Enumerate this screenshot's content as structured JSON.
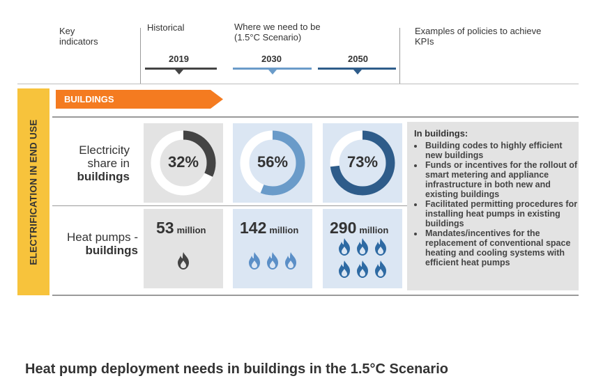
{
  "header": {
    "key_indicators": [
      "Key",
      "indicators"
    ],
    "historical": "Historical",
    "where_we_need": [
      "Where we need to be",
      "(1.5°C Scenario)"
    ],
    "examples": [
      "Examples of policies to achieve",
      "KPIs"
    ],
    "years": [
      "2019",
      "2030",
      "2050"
    ]
  },
  "side_label": "ELECTRIFICATION IN END USE",
  "section_tag": "BUILDINGS",
  "rows": {
    "electricity": {
      "label_lines": [
        "Electricity",
        "share in"
      ],
      "label_bold": "buildings"
    },
    "heatpumps": {
      "label_line": "Heat pumps -",
      "label_bold": "buildings"
    }
  },
  "electricity_share": [
    {
      "year": "2019",
      "percent": 32,
      "label": "32%",
      "color": "#444444",
      "bg": "#e3e3e3",
      "track": "#ffffff"
    },
    {
      "year": "2030",
      "percent": 56,
      "label": "56%",
      "color": "#6a9bc9",
      "bg": "#dbe6f3",
      "track": "#ffffff"
    },
    {
      "year": "2050",
      "percent": 73,
      "label": "73%",
      "color": "#2e5c8a",
      "bg": "#dbe6f3",
      "track": "#ffffff"
    }
  ],
  "heat_pumps": [
    {
      "year": "2019",
      "value": "53",
      "unit": "million",
      "icons": 1,
      "icon_color": "#444444",
      "bg": "#e3e3e3"
    },
    {
      "year": "2030",
      "value": "142",
      "unit": "million",
      "icons": 3,
      "icon_color": "#5b8fc7",
      "bg": "#dbe6f3"
    },
    {
      "year": "2050",
      "value": "290",
      "unit": "million",
      "icons": 6,
      "icon_color": "#2e6aa3",
      "bg": "#dbe6f3"
    }
  ],
  "policies": {
    "heading": "In buildings:",
    "items": [
      "Building codes to highly efficient new buildings",
      "Funds or incentives for the rollout of smart metering and appliance infrastructure in both new and existing buildings",
      "Facilitated permitting procedures for installing heat pumps in existing buildings",
      "Mandates/incentives for the replacement of conventional space heating and cooling systems with efficient heat pumps"
    ]
  },
  "footer_title": "Heat pump deployment needs in buildings in the 1.5°C Scenario",
  "colors": {
    "orange": "#f47b20",
    "yellow": "#f7c33c",
    "dark_bar": "#444444",
    "mid_blue": "#6a9bc9",
    "dark_blue": "#2e5c8a"
  }
}
